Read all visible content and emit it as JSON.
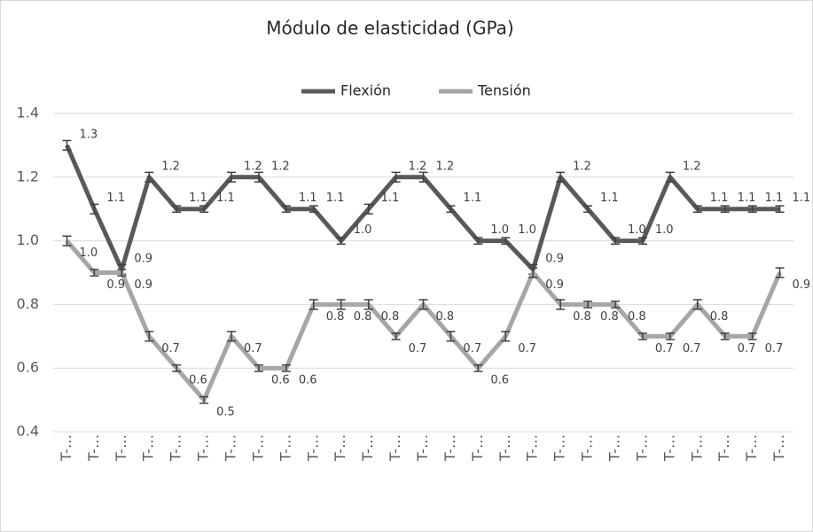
{
  "chart_data": {
    "type": "line",
    "title": "Módulo de elasticidad (GPa)",
    "categories": [
      "T-…",
      "T-…",
      "T-…",
      "T-…",
      "T-…",
      "T-…",
      "T-…",
      "T-…",
      "T-…",
      "T-…",
      "T-…",
      "T-…",
      "T-…",
      "T-…",
      "T-…",
      "T-…",
      "T-…",
      "T-…",
      "T-…",
      "T-…",
      "T-…",
      "T-…",
      "T-…",
      "T-…",
      "T-…",
      "T-…",
      "T-…"
    ],
    "series": [
      {
        "name": "Flexión",
        "color": "#595959",
        "values": [
          1.3,
          1.1,
          0.91,
          1.2,
          1.1,
          1.1,
          1.2,
          1.2,
          1.1,
          1.1,
          1.0,
          1.1,
          1.2,
          1.2,
          1.1,
          1.0,
          1.0,
          0.91,
          1.2,
          1.1,
          1.0,
          1.0,
          1.2,
          1.1,
          1.1,
          1.1,
          1.1
        ],
        "value_labels": [
          "1.3",
          "1.1",
          "0.9",
          "1.2",
          "1.1",
          "1.1",
          "1.2",
          "1.2",
          "1.1",
          "1.1",
          "1.0",
          "1.1",
          "1.2",
          "1.2",
          "1.1",
          "1.0",
          "1.0",
          "0.9",
          "1.2",
          "1.1",
          "1.0",
          "1.0",
          "1.2",
          "1.1",
          "1.1",
          "1.1",
          "1.1"
        ],
        "errors": [
          0.015,
          0.015,
          0.015,
          0.015,
          0.01,
          0.01,
          0.015,
          0.015,
          0.01,
          0.01,
          0.01,
          0.015,
          0.015,
          0.015,
          0.01,
          0.01,
          0.01,
          0.015,
          0.015,
          0.01,
          0.01,
          0.01,
          0.015,
          0.01,
          0.01,
          0.01,
          0.01
        ]
      },
      {
        "name": "Tensión",
        "color": "#a6a6a6",
        "values": [
          1.0,
          0.9,
          0.9,
          0.7,
          0.6,
          0.5,
          0.7,
          0.6,
          0.6,
          0.8,
          0.8,
          0.8,
          0.7,
          0.8,
          0.7,
          0.6,
          0.7,
          0.9,
          0.8,
          0.8,
          0.8,
          0.7,
          0.7,
          0.8,
          0.7,
          0.7,
          0.9
        ],
        "value_labels": [
          "1.0",
          "0.9",
          "0.9",
          "0.7",
          "0.6",
          "0.5",
          "0.7",
          "0.6",
          "0.6",
          "0.8",
          "0.8",
          "0.8",
          "0.7",
          "0.8",
          "0.7",
          "0.6",
          "0.7",
          "0.9",
          "0.8",
          "0.8",
          "0.8",
          "0.7",
          "0.7",
          "0.8",
          "0.7",
          "0.7",
          "0.9"
        ],
        "errors": [
          0.015,
          0.01,
          0.01,
          0.015,
          0.01,
          0.01,
          0.015,
          0.01,
          0.01,
          0.015,
          0.015,
          0.015,
          0.01,
          0.015,
          0.015,
          0.01,
          0.015,
          0.015,
          0.015,
          0.01,
          0.01,
          0.01,
          0.01,
          0.015,
          0.01,
          0.01,
          0.015
        ]
      }
    ],
    "ylim": [
      0.4,
      1.4
    ],
    "yticks": [
      {
        "value": 0.4,
        "label": "0.4"
      },
      {
        "value": 0.6,
        "label": "0.6"
      },
      {
        "value": 0.8,
        "label": "0.8"
      },
      {
        "value": 1.0,
        "label": "1.0"
      },
      {
        "value": 1.2,
        "label": "1.2"
      },
      {
        "value": 1.4,
        "label": "1.4"
      }
    ],
    "grid": true,
    "legend": "top"
  }
}
